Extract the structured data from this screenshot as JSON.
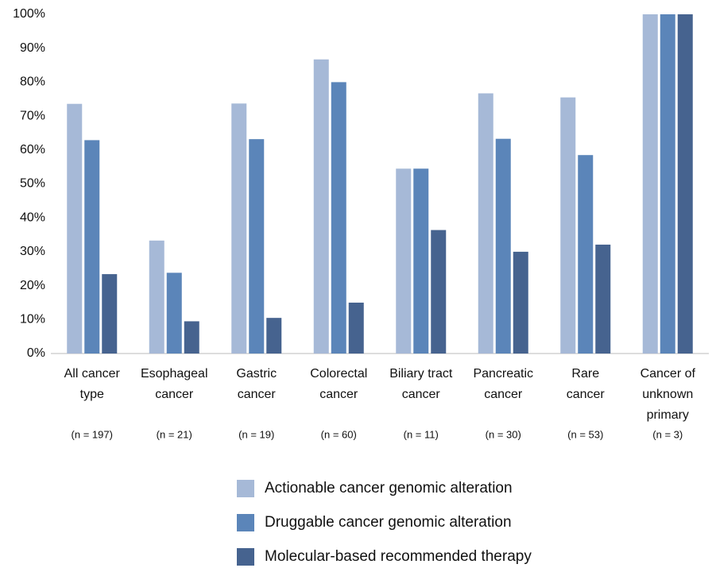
{
  "chart_data": {
    "type": "bar",
    "categories": [
      [
        "All cancer",
        "type"
      ],
      [
        "Esophageal",
        "cancer"
      ],
      [
        "Gastric",
        "cancer"
      ],
      [
        "Colorectal",
        "cancer"
      ],
      [
        "Biliary tract",
        "cancer"
      ],
      [
        "Pancreatic",
        "cancer"
      ],
      [
        "Rare",
        "cancer"
      ],
      [
        "Cancer of",
        "unknown",
        "primary"
      ]
    ],
    "sample_sizes": [
      "(n = 197)",
      "(n = 21)",
      "(n = 19)",
      "(n = 60)",
      "(n = 11)",
      "(n = 30)",
      "(n = 53)",
      "(n = 3)"
    ],
    "series": [
      {
        "name": "Actionable cancer genomic alteration",
        "color": "#a6b9d7",
        "values": [
          73.6,
          33.3,
          73.7,
          86.7,
          54.5,
          76.7,
          75.5,
          100
        ]
      },
      {
        "name": "Druggable cancer genomic alteration",
        "color": "#5b85b9",
        "values": [
          62.9,
          23.8,
          63.2,
          80.0,
          54.5,
          63.3,
          58.5,
          100
        ]
      },
      {
        "name": "Molecular-based recommended therapy",
        "color": "#46638f",
        "values": [
          23.4,
          9.5,
          10.5,
          15.0,
          36.4,
          30.0,
          32.1,
          100
        ]
      }
    ],
    "ylim": [
      0,
      100
    ],
    "yticks": [
      {
        "value": 0,
        "label": "0%"
      },
      {
        "value": 10,
        "label": "10%"
      },
      {
        "value": 20,
        "label": "20%"
      },
      {
        "value": 30,
        "label": "30%"
      },
      {
        "value": 40,
        "label": "40%"
      },
      {
        "value": 50,
        "label": "50%"
      },
      {
        "value": 60,
        "label": "60%"
      },
      {
        "value": 70,
        "label": "70%"
      },
      {
        "value": 80,
        "label": "80%"
      },
      {
        "value": 90,
        "label": "90%"
      },
      {
        "value": 100,
        "label": "100%"
      }
    ],
    "grid": false
  }
}
